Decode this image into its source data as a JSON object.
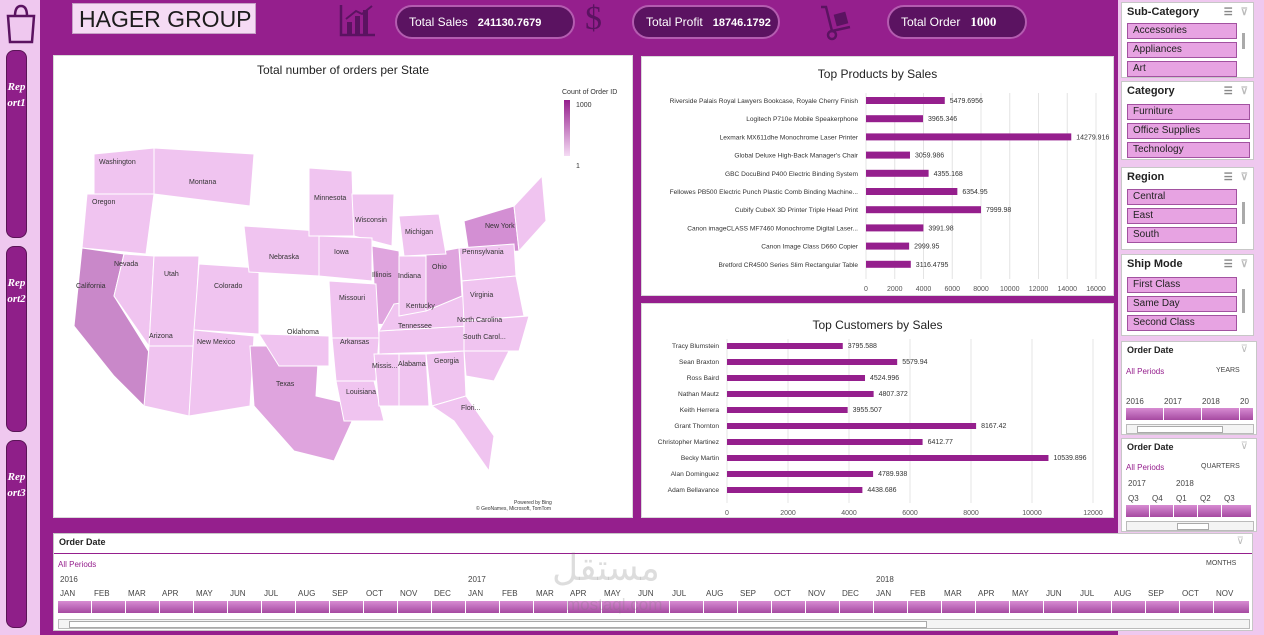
{
  "header": {
    "company": "HAGER GROUP",
    "kpis": [
      {
        "label": "Total Sales",
        "value": "241130.7679"
      },
      {
        "label": "Total Profit",
        "value": "18746.1792"
      },
      {
        "label": "Total Order",
        "value": "1000"
      }
    ]
  },
  "nav": {
    "reports": [
      "Report1",
      "Report2",
      "Report3"
    ]
  },
  "icons": {
    "bag": "shopping-bag-icon",
    "chart": "bar-chart-icon",
    "dollar": "dollar-icon",
    "truck": "hand-truck-icon"
  },
  "colors": {
    "accent": "#951f8d",
    "light": "#efc8ef",
    "bar": "#951f8d"
  },
  "map": {
    "title": "Total number of orders per State",
    "legend_title": "Count of Order ID",
    "legend_max": "1000",
    "legend_min": "1",
    "credit1": "Powered by Bing",
    "credit2": "© GeoNames, Microsoft, TomTom",
    "states": [
      "Washington",
      "Oregon",
      "Montana",
      "California",
      "Nevada",
      "Utah",
      "Colorado",
      "Arizona",
      "New Mexico",
      "Texas",
      "Oklahoma",
      "Nebraska",
      "Minnesota",
      "Wisconsin",
      "Iowa",
      "Illinois",
      "Missouri",
      "Arkansas",
      "Louisiana",
      "Missis...",
      "Alabama",
      "Tennessee",
      "Kentucky",
      "Indiana",
      "Ohio",
      "Michigan",
      "New York",
      "Pennsylvania",
      "Virginia",
      "North Carolina",
      "South Carol...",
      "Georgia",
      "Flori..."
    ]
  },
  "chart_data": [
    {
      "type": "bar",
      "title": "Top Products by Sales",
      "orientation": "horizontal",
      "categories": [
        "Riverside Palais Royal Lawyers Bookcase, Royale Cherry Finish",
        "Logitech P710e Mobile Speakerphone",
        "Lexmark MX611dhe Monochrome Laser Printer",
        "Global Deluxe High-Back Manager's Chair",
        "GBC DocuBind P400 Electric Binding System",
        "Fellowes PB500 Electric Punch Plastic Comb Binding Machine...",
        "Cubify CubeX 3D Printer Triple Head Print",
        "Canon imageCLASS MF7460 Monochrome Digital Laser...",
        "Canon Image Class D660 Copier",
        "Bretford CR4500 Series Slim Rectangular Table"
      ],
      "values": [
        5479.6956,
        3965.346,
        14279.916,
        3059.986,
        4355.168,
        6354.95,
        7999.98,
        3991.98,
        2999.95,
        3116.4795
      ],
      "labels": [
        "5479.6956",
        "3965.346",
        "14279.916",
        "3059.986",
        "4355.168",
        "6354.95",
        "7999.98",
        "3991.98",
        "2999.95",
        "3116.4795"
      ],
      "xlim": [
        0,
        16000
      ],
      "ticks": [
        "0",
        "2000",
        "4000",
        "6000",
        "8000",
        "10000",
        "12000",
        "14000",
        "16000"
      ]
    },
    {
      "type": "bar",
      "title": "Top Customers by Sales",
      "orientation": "horizontal",
      "categories": [
        "Tracy Blumstein",
        "Sean Braxton",
        "Ross Baird",
        "Nathan Mautz",
        "Keith Herrera",
        "Grant Thornton",
        "Christopher Martinez",
        "Becky Martin",
        "Alan Dominguez",
        "Adam Bellavance"
      ],
      "values": [
        3795.588,
        5579.94,
        4524.996,
        4807.372,
        3955.507,
        8167.42,
        6412.77,
        10539.896,
        4789.938,
        4438.686
      ],
      "labels": [
        "3795.588",
        "5579.94",
        "4524.996",
        "4807.372",
        "3955.507",
        "8167.42",
        "6412.77",
        "10539.896",
        "4789.938",
        "4438.686"
      ],
      "xlim": [
        0,
        12000
      ],
      "ticks": [
        "0",
        "2000",
        "4000",
        "6000",
        "8000",
        "10000",
        "12000"
      ]
    }
  ],
  "slicers": {
    "subcategory": {
      "title": "Sub-Category",
      "items": [
        "Accessories",
        "Appliances",
        "Art"
      ]
    },
    "category": {
      "title": "Category",
      "items": [
        "Furniture",
        "Office Supplies",
        "Technology"
      ]
    },
    "region": {
      "title": "Region",
      "items": [
        "Central",
        "East",
        "South"
      ]
    },
    "shipmode": {
      "title": "Ship Mode",
      "items": [
        "First Class",
        "Same Day",
        "Second Class"
      ]
    }
  },
  "timeline_years": {
    "title": "Order Date",
    "selection": "All Periods",
    "level": "YEARS",
    "labels": [
      "2016",
      "2017",
      "2018",
      "20"
    ]
  },
  "timeline_quarters": {
    "title": "Order Date",
    "selection": "All Periods",
    "level": "QUARTERS",
    "years": [
      "2017",
      "2018"
    ],
    "labels": [
      "Q3",
      "Q4",
      "Q1",
      "Q2",
      "Q3"
    ]
  },
  "timeline_months": {
    "title": "Order Date",
    "selection": "All Periods",
    "level": "MONTHS",
    "years": [
      "2016",
      "2017",
      "2018"
    ],
    "months": [
      "JAN",
      "FEB",
      "MAR",
      "APR",
      "MAY",
      "JUN",
      "JUL",
      "AUG",
      "SEP",
      "OCT",
      "NOV",
      "DEC",
      "JAN",
      "FEB",
      "MAR",
      "APR",
      "MAY",
      "JUN",
      "JUL",
      "AUG",
      "SEP",
      "OCT",
      "NOV",
      "DEC",
      "JAN",
      "FEB",
      "MAR",
      "APR",
      "MAY",
      "JUN",
      "JUL",
      "AUG",
      "SEP",
      "OCT",
      "NOV"
    ]
  },
  "watermark": {
    "arabic": "مستقل",
    "latin": "mostaql.com"
  }
}
